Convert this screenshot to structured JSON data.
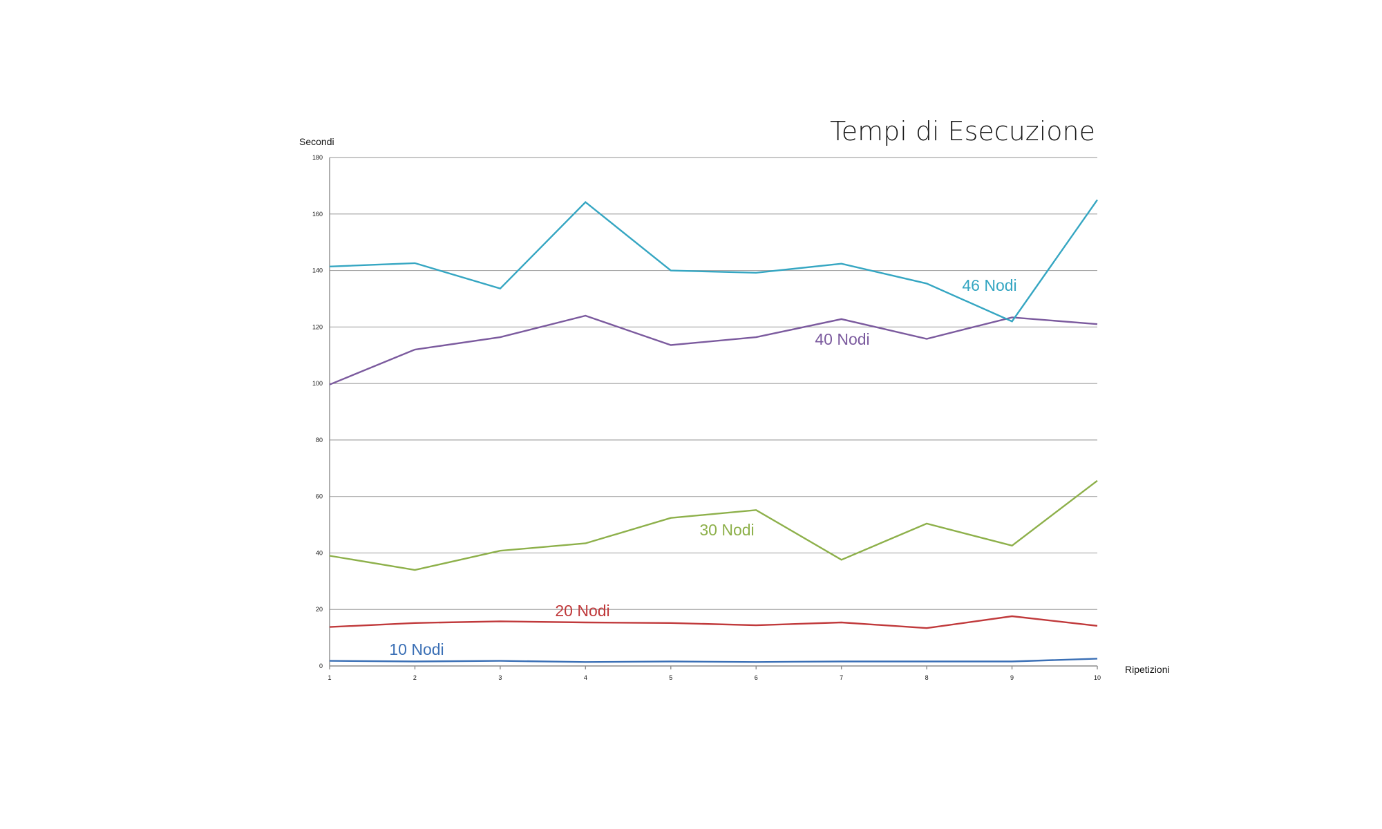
{
  "chart_data": {
    "type": "line",
    "title": "Tempi di Esecuzione",
    "ylabel": "Secondi",
    "xlabel": "Ripetizioni",
    "x": [
      1,
      2,
      3,
      4,
      5,
      6,
      7,
      8,
      9,
      10
    ],
    "yticks": [
      0,
      20,
      40,
      60,
      80,
      100,
      120,
      140,
      160,
      180
    ],
    "ylim": [
      0,
      180
    ],
    "grid": true,
    "series": [
      {
        "name": "10 Nodi",
        "color": "#3a6fb5",
        "values": [
          1.8,
          1.6,
          1.8,
          1.4,
          1.6,
          1.4,
          1.6,
          1.6,
          1.6,
          2.6
        ]
      },
      {
        "name": "20 Nodi",
        "color": "#c0393b",
        "values": [
          13.8,
          15.2,
          15.8,
          15.4,
          15.2,
          14.4,
          15.4,
          13.4,
          17.6,
          14.2
        ]
      },
      {
        "name": "30 Nodi",
        "color": "#8db04a",
        "values": [
          39,
          34,
          40.8,
          43.4,
          52.4,
          55.2,
          37.6,
          50.4,
          42.6,
          65.6
        ]
      },
      {
        "name": "40 Nodi",
        "color": "#7b5a9e",
        "values": [
          99.6,
          112,
          116.4,
          124,
          113.6,
          116.4,
          122.8,
          115.8,
          123.4,
          121
        ]
      },
      {
        "name": "46 Nodi",
        "color": "#35a6c2",
        "values": [
          141.4,
          142.6,
          133.6,
          164.2,
          140,
          139.2,
          142.4,
          135.4,
          122,
          165
        ]
      }
    ]
  }
}
